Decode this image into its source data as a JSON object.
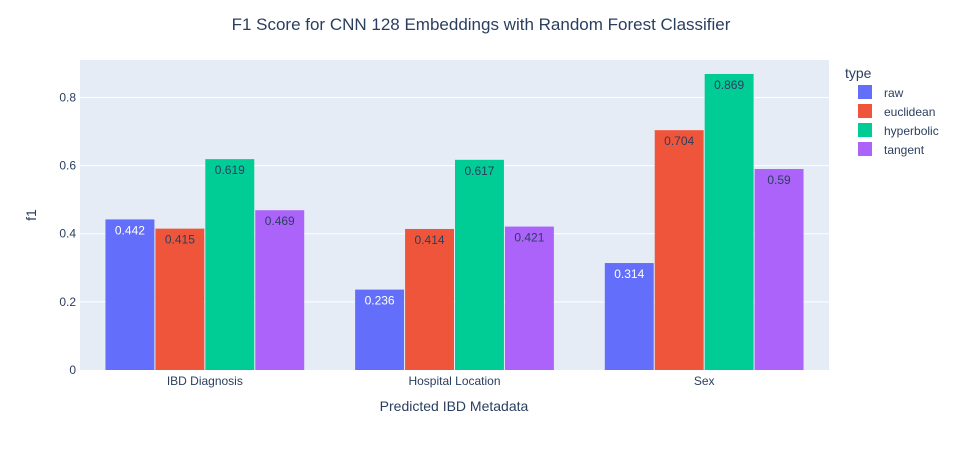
{
  "chart_data": {
    "type": "bar",
    "title": "F1 Score for CNN 128 Embeddings with Random Forest Classifier",
    "xlabel": "Predicted IBD Metadata",
    "ylabel": "f1",
    "categories": [
      "IBD Diagnosis",
      "Hospital Location",
      "Sex"
    ],
    "ylim": [
      0,
      0.91
    ],
    "yticks": [
      0,
      0.2,
      0.4,
      0.6,
      0.8
    ],
    "ytick_labels": [
      "0",
      "0.2",
      "0.4",
      "0.6",
      "0.8"
    ],
    "grid": true,
    "legend": {
      "title": "type",
      "placement": "right"
    },
    "series": [
      {
        "name": "raw",
        "color": "#636efa",
        "values": [
          0.442,
          0.236,
          0.314
        ],
        "labels": [
          "0.442",
          "0.236",
          "0.314"
        ]
      },
      {
        "name": "euclidean",
        "color": "#ef553b",
        "values": [
          0.415,
          0.414,
          0.704
        ],
        "labels": [
          "0.415",
          "0.414",
          "0.704"
        ]
      },
      {
        "name": "hyperbolic",
        "color": "#00cc96",
        "values": [
          0.619,
          0.617,
          0.869
        ],
        "labels": [
          "0.619",
          "0.617",
          "0.869"
        ]
      },
      {
        "name": "tangent",
        "color": "#ab63fa",
        "values": [
          0.469,
          0.421,
          0.59
        ],
        "labels": [
          "0.469",
          "0.421",
          "0.59"
        ]
      }
    ]
  }
}
